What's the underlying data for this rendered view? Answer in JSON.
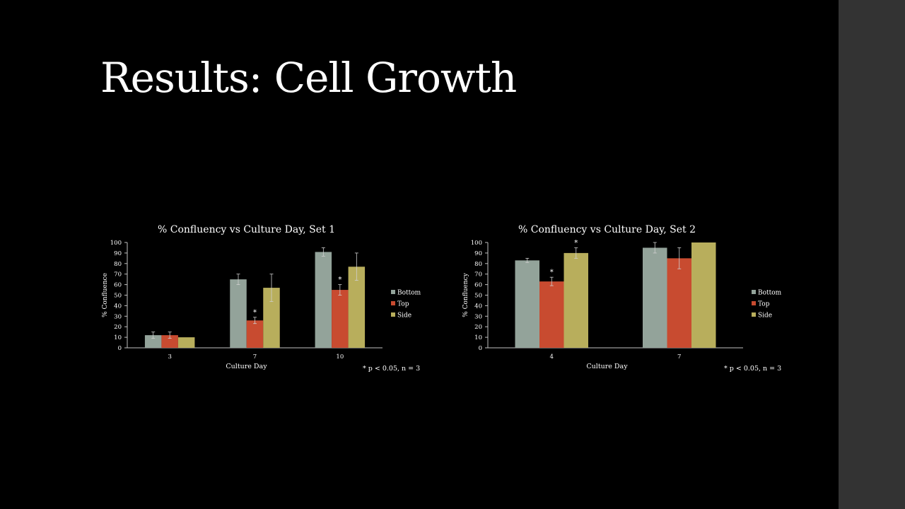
{
  "slide": {
    "title": "Results: Cell Growth"
  },
  "colors": {
    "bottom": "#93a39a",
    "top": "#c84b30",
    "side": "#b8ae5c",
    "axis": "#bfbfbf",
    "error_bar": "#cfcfcf",
    "background": "#000000",
    "side_panel": "#333333"
  },
  "chart_data": [
    {
      "type": "bar",
      "title": "% Confluency vs Culture Day, Set 1",
      "xlabel": "Culture Day",
      "ylabel": "% Confluence",
      "ylim": [
        0,
        100
      ],
      "yticks": [
        0,
        10,
        20,
        30,
        40,
        50,
        60,
        70,
        80,
        90,
        100
      ],
      "categories": [
        "3",
        "7",
        "10"
      ],
      "series": [
        {
          "name": "Bottom",
          "values": [
            12,
            65,
            91
          ],
          "errors": [
            3,
            5,
            4
          ]
        },
        {
          "name": "Top",
          "values": [
            12,
            26,
            55
          ],
          "errors": [
            3,
            3,
            5
          ]
        },
        {
          "name": "Side",
          "values": [
            10,
            57,
            77
          ],
          "errors": [
            0,
            13,
            13
          ]
        }
      ],
      "annotations": [
        {
          "series": "Top",
          "category": "7",
          "text": "*"
        },
        {
          "series": "Top",
          "category": "10",
          "text": "*"
        }
      ],
      "legend": "right",
      "grid": false,
      "footnote": "* p < 0.05, n = 3"
    },
    {
      "type": "bar",
      "title": "% Confluency vs Culture Day, Set 2",
      "xlabel": "Culture Day",
      "ylabel": "% Confluency",
      "ylim": [
        0,
        100
      ],
      "yticks": [
        0,
        10,
        20,
        30,
        40,
        50,
        60,
        70,
        80,
        90,
        100
      ],
      "categories": [
        "4",
        "7"
      ],
      "series": [
        {
          "name": "Bottom",
          "values": [
            83,
            95
          ],
          "errors": [
            2,
            5
          ]
        },
        {
          "name": "Top",
          "values": [
            63,
            85
          ],
          "errors": [
            4,
            10
          ]
        },
        {
          "name": "Side",
          "values": [
            90,
            100
          ],
          "errors": [
            5,
            0
          ]
        }
      ],
      "annotations": [
        {
          "series": "Top",
          "category": "4",
          "text": "*"
        },
        {
          "series": "Side",
          "category": "4",
          "text": "*"
        }
      ],
      "legend": "right",
      "grid": false,
      "footnote": "* p < 0.05, n = 3"
    }
  ]
}
